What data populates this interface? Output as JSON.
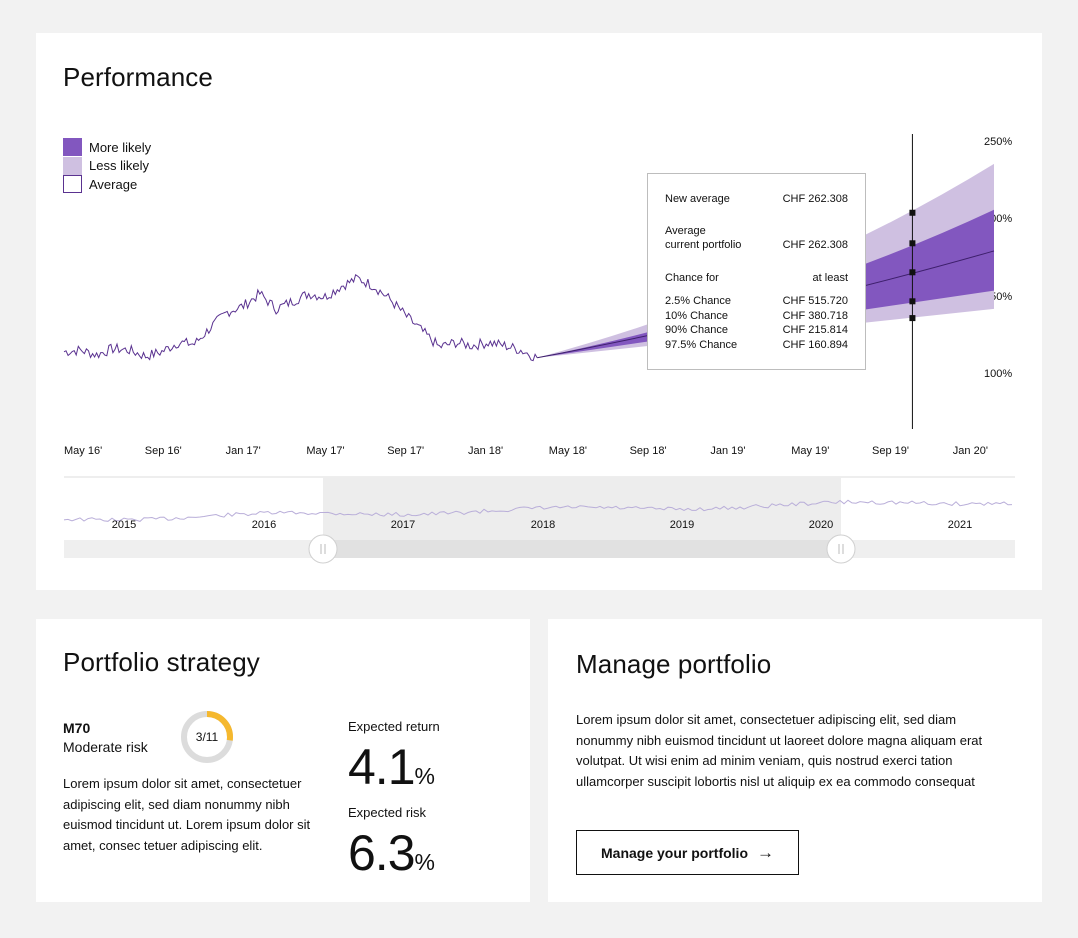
{
  "performance": {
    "title": "Performance",
    "legend": [
      {
        "label": "More likely",
        "color": "#8257bf"
      },
      {
        "label": "Less likely",
        "color": "#cfc0e1"
      },
      {
        "label": "Average",
        "color": "#ffffff"
      }
    ],
    "tooltip": {
      "new_average_label": "New average",
      "new_average_value": "CHF 262.308",
      "avg_label_1": "Average",
      "avg_label_2": "current portfolio",
      "avg_value": "CHF 262.308",
      "chance_label": "Chance for",
      "chance_header": "at least",
      "chances": [
        {
          "label": "2.5% Chance",
          "value": "CHF 515.720"
        },
        {
          "label": "10% Chance",
          "value": "CHF 380.718"
        },
        {
          "label": "90% Chance",
          "value": "CHF 215.814"
        },
        {
          "label": "97.5% Chance",
          "value": "CHF 160.894"
        }
      ]
    },
    "chart_data": {
      "type": "area",
      "title": "",
      "x_ticks": [
        "May 16'",
        "Sep 16'",
        "Jan 17'",
        "May 17'",
        "Sep 17'",
        "Jan 18'",
        "May 18'",
        "Sep 18'",
        "Jan 19'",
        "May 19'",
        "Sep 19'",
        "Jan 20'"
      ],
      "y_ticks": [
        "250%",
        "200%",
        "150%",
        "100%"
      ],
      "ylim": [
        90,
        250
      ],
      "history": {
        "name": "Performance",
        "color": "#5a3290",
        "points": [
          [
            0,
            112
          ],
          [
            1,
            113
          ],
          [
            2,
            110
          ],
          [
            3,
            114
          ],
          [
            4,
            113
          ],
          [
            5,
            109
          ],
          [
            6,
            112
          ],
          [
            7,
            118
          ],
          [
            8,
            117
          ],
          [
            9,
            128
          ],
          [
            10,
            138
          ],
          [
            11,
            142
          ],
          [
            12,
            150
          ],
          [
            13,
            140
          ],
          [
            14,
            145
          ],
          [
            15,
            150
          ],
          [
            16,
            148
          ],
          [
            17,
            155
          ],
          [
            18,
            160
          ],
          [
            19,
            155
          ],
          [
            20,
            146
          ],
          [
            21,
            135
          ],
          [
            22,
            125
          ],
          [
            23,
            115
          ],
          [
            24,
            118
          ],
          [
            25,
            116
          ],
          [
            26,
            118
          ],
          [
            27,
            116
          ],
          [
            28,
            113
          ],
          [
            29,
            108
          ]
        ]
      },
      "forecast": {
        "start": 29,
        "end": 57,
        "start_value": 108,
        "average_end": 178,
        "more_likely_upper_end": 205,
        "more_likely_lower_end": 152,
        "less_likely_upper_end": 235,
        "less_likely_lower_end": 140
      },
      "marker_x": 52,
      "marker_values": [
        203,
        183,
        164,
        145,
        134
      ],
      "timeline": {
        "years": [
          "2015",
          "2016",
          "2017",
          "2018",
          "2019",
          "2020",
          "2021"
        ],
        "selection": [
          "2017",
          "2020"
        ]
      }
    }
  },
  "strategy": {
    "title": "Portfolio strategy",
    "code": "M70",
    "risk_label": "Moderate risk",
    "donut_label": "3/11",
    "donut_value": 3,
    "donut_total": 11,
    "donut_color": "#f5b82e",
    "description": "Lorem ipsum dolor sit amet, consectetuer adipiscing elit, sed diam nonummy nibh euismod tincidunt ut. Lorem ipsum dolor sit amet, consec tetuer adipiscing elit.",
    "expected_return_label": "Expected return",
    "expected_return_value": "4.1",
    "expected_return_unit": "%",
    "expected_risk_label": "Expected risk",
    "expected_risk_value": "6.3",
    "expected_risk_unit": "%"
  },
  "manage": {
    "title": "Manage portfolio",
    "description": "Lorem ipsum dolor sit amet, consectetuer adipiscing elit, sed diam nonummy nibh euismod tincidunt ut laoreet dolore magna aliquam erat volutpat. Ut wisi enim ad minim veniam, quis nostrud exerci tation ullamcorper suscipit lobortis nisl ut aliquip ex ea commodo consequat",
    "button_label": "Manage your portfolio",
    "button_icon": "arrow-right-icon"
  }
}
